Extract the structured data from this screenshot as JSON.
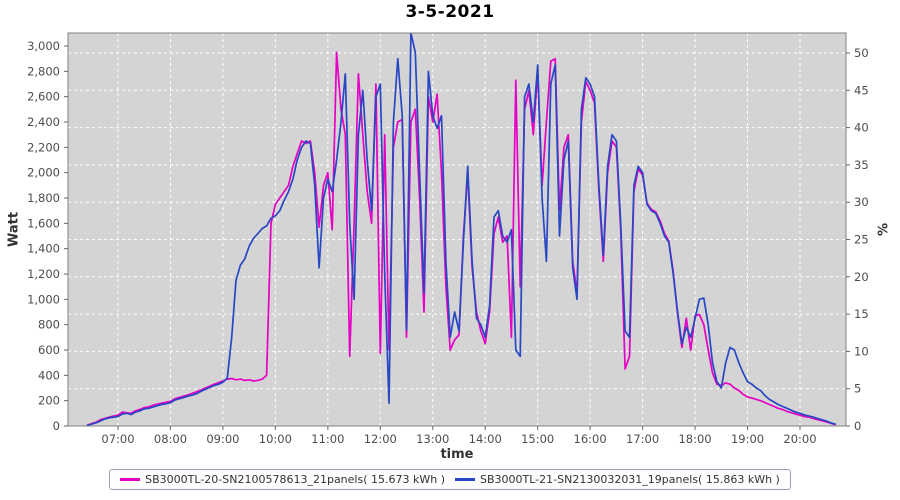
{
  "window": {
    "title": "3-5-2021"
  },
  "chart_data": {
    "type": "line",
    "title": "3-5-2021",
    "xlabel": "time",
    "ylabel_left": "Watt",
    "ylabel_right": "%",
    "plot_bg": "#d4d4d4",
    "grid_color": "#ffffff",
    "frame_color": "#808080",
    "tick_text_color": "#4d4d4d",
    "ylim_left": [
      0,
      3103
    ],
    "ylim_right": [
      0,
      52.7
    ],
    "x_tick_labels": [
      "07:00",
      "08:00",
      "09:00",
      "10:00",
      "11:00",
      "12:00",
      "13:00",
      "14:00",
      "15:00",
      "16:00",
      "17:00",
      "18:00",
      "19:00",
      "20:00"
    ],
    "left_tick_labels": [
      "0",
      "200",
      "400",
      "600",
      "800",
      "1,000",
      "1,200",
      "1,400",
      "1,600",
      "1,800",
      "2,000",
      "2,200",
      "2,400",
      "2,600",
      "2,800",
      "3,000"
    ],
    "left_tick_values": [
      0,
      200,
      400,
      600,
      800,
      1000,
      1200,
      1400,
      1600,
      1800,
      2000,
      2200,
      2400,
      2600,
      2800,
      3000
    ],
    "right_tick_labels": [
      "0",
      "5",
      "10",
      "15",
      "20",
      "25",
      "30",
      "35",
      "40",
      "45",
      "50"
    ],
    "right_tick_values": [
      0,
      5,
      10,
      15,
      20,
      25,
      30,
      35,
      40,
      45,
      50
    ],
    "grid": true,
    "legend_position": "bottom-center",
    "x_start": "06:25",
    "x_step_minutes": 5,
    "series": [
      {
        "name": "SB3000TL-20-SN2100578613_21panels( 15.673 kWh )",
        "energy_kwh": 15.673,
        "color": "#e400c4",
        "values": [
          8,
          20,
          30,
          50,
          60,
          70,
          78,
          85,
          110,
          105,
          100,
          120,
          130,
          145,
          150,
          165,
          172,
          180,
          188,
          195,
          215,
          225,
          235,
          245,
          258,
          270,
          285,
          300,
          315,
          330,
          342,
          355,
          370,
          375,
          365,
          370,
          360,
          365,
          355,
          360,
          370,
          400,
          1600,
          1750,
          1800,
          1850,
          1900,
          2050,
          2150,
          2250,
          2230,
          2250,
          2000,
          1570,
          1900,
          2000,
          1550,
          2950,
          2500,
          2300,
          550,
          1600,
          2780,
          2300,
          1850,
          1600,
          2700,
          575,
          2300,
          600,
          2200,
          2400,
          2420,
          700,
          2400,
          2500,
          1800,
          900,
          2600,
          2400,
          2620,
          2000,
          1100,
          600,
          680,
          720,
          1500,
          2000,
          1250,
          900,
          750,
          650,
          900,
          1520,
          1650,
          1450,
          1500,
          700,
          2730,
          1100,
          2500,
          2650,
          2300,
          2800,
          1900,
          2400,
          2880,
          2900,
          1700,
          2200,
          2300,
          1300,
          1050,
          2400,
          2720,
          2650,
          2550,
          1850,
          1300,
          2000,
          2250,
          2200,
          1550,
          450,
          550,
          1850,
          2030,
          1980,
          1760,
          1710,
          1690,
          1620,
          1520,
          1460,
          1220,
          880,
          620,
          850,
          600,
          870,
          880,
          800,
          600,
          420,
          330,
          320,
          340,
          330,
          300,
          280,
          250,
          230,
          220,
          210,
          200,
          185,
          170,
          155,
          140,
          130,
          115,
          105,
          95,
          85,
          75,
          70,
          60,
          50,
          42,
          32,
          22,
          12
        ]
      },
      {
        "name": "SB3000TL-21-SN2130032031_19panels( 15.863 kWh )",
        "energy_kwh": 15.863,
        "color": "#2747c4",
        "values": [
          5,
          15,
          25,
          40,
          55,
          65,
          70,
          75,
          95,
          100,
          90,
          110,
          120,
          135,
          140,
          150,
          160,
          170,
          175,
          185,
          205,
          215,
          225,
          235,
          245,
          255,
          275,
          290,
          305,
          320,
          330,
          345,
          380,
          700,
          1150,
          1270,
          1320,
          1420,
          1480,
          1520,
          1560,
          1580,
          1640,
          1660,
          1700,
          1780,
          1850,
          1950,
          2100,
          2200,
          2250,
          2230,
          1900,
          1250,
          1800,
          1950,
          1850,
          2100,
          2400,
          2780,
          1600,
          1000,
          2300,
          2650,
          2100,
          1700,
          2600,
          2700,
          1200,
          180,
          2400,
          2900,
          2450,
          760,
          3140,
          2950,
          2000,
          1050,
          2800,
          2450,
          2350,
          2450,
          1300,
          700,
          900,
          750,
          1450,
          2050,
          1300,
          850,
          800,
          700,
          950,
          1650,
          1700,
          1500,
          1450,
          1550,
          600,
          550,
          2600,
          2700,
          2400,
          2850,
          1800,
          1300,
          2700,
          2850,
          1500,
          2100,
          2250,
          1250,
          1000,
          2500,
          2750,
          2700,
          2600,
          1900,
          1350,
          2050,
          2300,
          2250,
          1600,
          750,
          700,
          1900,
          2050,
          2000,
          1750,
          1700,
          1680,
          1600,
          1500,
          1450,
          1200,
          900,
          650,
          780,
          700,
          850,
          1000,
          1010,
          800,
          500,
          350,
          300,
          500,
          620,
          600,
          500,
          420,
          350,
          330,
          300,
          280,
          240,
          210,
          190,
          170,
          155,
          140,
          125,
          110,
          100,
          88,
          80,
          70,
          60,
          50,
          40,
          25,
          15
        ]
      }
    ]
  }
}
